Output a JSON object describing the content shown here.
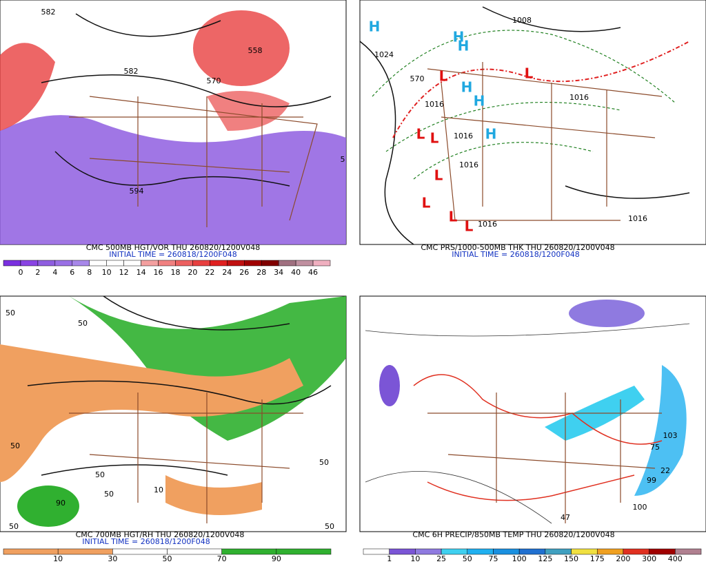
{
  "panels": [
    {
      "title": "CMC 500MB HGT/VOR THU 260820/1200V048",
      "initial_time": "INITIAL TIME = 260818/1200F048",
      "labels": [
        "582",
        "558",
        "582",
        "570",
        "594",
        "5"
      ],
      "colorbar": {
        "labels": [
          "0",
          "2",
          "4",
          "6",
          "8",
          "10",
          "12",
          "14",
          "16",
          "18",
          "20",
          "22",
          "24",
          "26",
          "28",
          "34",
          "40",
          "46"
        ],
        "colors": [
          "#7a30e0",
          "#8a44e4",
          "#8f5ee0",
          "#9a70e6",
          "#a888ea",
          "#ffffff",
          "#ffffff",
          "#ffffff",
          "#f4a0a0",
          "#f08080",
          "#ec6060",
          "#e84040",
          "#e02020",
          "#c01010",
          "#a00000",
          "#800000",
          "#a07080",
          "#c090a0",
          "#f0b0c0"
        ]
      }
    },
    {
      "title": "CMC PRS/1000-500MB THK THU 260820/1200V048",
      "initial_time": "INITIAL TIME = 260818/1200F048",
      "labels": [
        "1024",
        "1008",
        "570",
        "1016",
        "1016",
        "1016",
        "1016",
        "1016",
        "1016"
      ],
      "highs": [
        "H",
        "H",
        "H",
        "H",
        "H",
        "H"
      ],
      "lows": [
        "L",
        "L",
        "L",
        "L",
        "L",
        "L",
        "L",
        "L"
      ]
    },
    {
      "title": "CMC 700MB HGT/RH THU 260820/1200V048",
      "initial_time": "INITIAL TIME = 260818/1200F048",
      "labels": [
        "50",
        "50",
        "50",
        "50",
        "50",
        "50",
        "90",
        "50",
        "50",
        "10"
      ],
      "colorbar": {
        "labels": [
          "10",
          "30",
          "50",
          "70",
          "90"
        ],
        "colors": [
          "#f0a060",
          "#f0a060",
          "#ffffff",
          "#ffffff",
          "#30b030",
          "#30b030"
        ]
      }
    },
    {
      "title": "CMC 6H PRECIP/850MB TEMP THU 260820/1200V048",
      "labels": [
        "103",
        "75",
        "99",
        "100",
        "47",
        "22"
      ],
      "colorbar": {
        "labels": [
          "1",
          "10",
          "25",
          "50",
          "75",
          "100",
          "125",
          "150",
          "175",
          "200",
          "300",
          "400"
        ],
        "colors": [
          "#ffffff",
          "#7b55d6",
          "#8f7ae0",
          "#3fd0f0",
          "#20b0f0",
          "#1a90e0",
          "#2070d0",
          "#40a0c0",
          "#f0e040",
          "#f0a020",
          "#e03020",
          "#a00000",
          "#b08090"
        ]
      }
    }
  ]
}
